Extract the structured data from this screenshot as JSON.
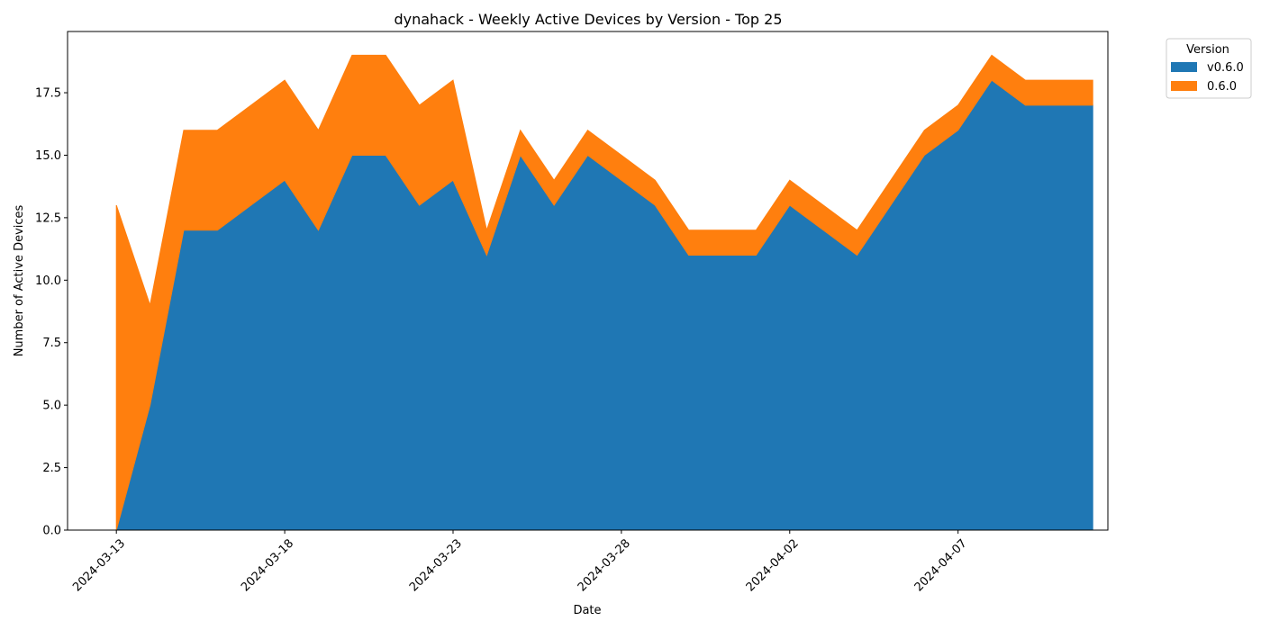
{
  "chart_data": {
    "type": "area",
    "stacked": true,
    "title": "dynahack - Weekly Active Devices by Version - Top 25",
    "xlabel": "Date",
    "ylabel": "Number of Active Devices",
    "x": [
      "2024-03-13",
      "2024-03-14",
      "2024-03-15",
      "2024-03-16",
      "2024-03-17",
      "2024-03-18",
      "2024-03-19",
      "2024-03-20",
      "2024-03-21",
      "2024-03-22",
      "2024-03-23",
      "2024-03-24",
      "2024-03-25",
      "2024-03-26",
      "2024-03-27",
      "2024-03-28",
      "2024-03-29",
      "2024-03-30",
      "2024-03-31",
      "2024-04-01",
      "2024-04-02",
      "2024-04-03",
      "2024-04-04",
      "2024-04-05",
      "2024-04-06",
      "2024-04-07",
      "2024-04-08",
      "2024-04-09",
      "2024-04-10",
      "2024-04-11"
    ],
    "x_ticks": [
      "2024-03-13",
      "2024-03-18",
      "2024-03-23",
      "2024-03-28",
      "2024-04-02",
      "2024-04-07"
    ],
    "xlim": [
      "2024-03-11.55",
      "2024-04-11.45"
    ],
    "ylim": [
      0,
      19.95
    ],
    "y_ticks": [
      "0.0",
      "2.5",
      "5.0",
      "7.5",
      "10.0",
      "12.5",
      "15.0",
      "17.5"
    ],
    "grid": false,
    "legend": {
      "title": "Version",
      "placement": "outside-top-right"
    },
    "series": [
      {
        "name": "v0.6.0",
        "color": "#1f77b4",
        "values": [
          0,
          5,
          12,
          12,
          13,
          14,
          12,
          15,
          15,
          13,
          14,
          11,
          15,
          13,
          15,
          14,
          13,
          11,
          11,
          11,
          13,
          12,
          11,
          13,
          15,
          16,
          18,
          17,
          17,
          17
        ]
      },
      {
        "name": "0.6.0",
        "color": "#ff7f0e",
        "values": [
          13,
          4,
          4,
          4,
          4,
          4,
          4,
          4,
          4,
          4,
          4,
          1,
          1,
          1,
          1,
          1,
          1,
          1,
          1,
          1,
          1,
          1,
          1,
          1,
          1,
          1,
          1,
          1,
          1,
          1
        ]
      }
    ]
  }
}
